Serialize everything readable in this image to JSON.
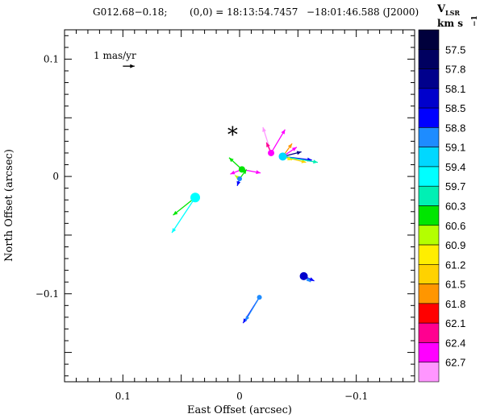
{
  "chart_data": {
    "type": "scatter",
    "header": {
      "source": "G012.68−0.18;",
      "origin": "(0,0) = 18:13:54.7457",
      "dec": "−18:01:46.588 (J2000)"
    },
    "xlabel": "East Offset (arcsec)",
    "ylabel": "North Offset (arcsec)",
    "xlim": [
      0.15,
      -0.15
    ],
    "ylim": [
      -0.175,
      0.125
    ],
    "x_ticks": [
      {
        "value": 0.1,
        "label": "0.1"
      },
      {
        "value": 0.0,
        "label": "0"
      },
      {
        "value": -0.1,
        "label": "−0.1"
      }
    ],
    "y_ticks": [
      {
        "value": 0.1,
        "label": "0.1"
      },
      {
        "value": 0.0,
        "label": "0"
      },
      {
        "value": -0.1,
        "label": "−0.1"
      }
    ],
    "reference_arrow": {
      "label": "1 mas/yr",
      "x": 0.1,
      "y": 0.094,
      "dx": -0.01,
      "dy": 0.0
    },
    "star_marker": {
      "symbol": "*",
      "x": 0.006,
      "y": 0.04
    },
    "colorbar": {
      "title_main": "V",
      "title_sub": "LSR",
      "unit": "km s",
      "unit_exp": "−1",
      "levels": [
        {
          "value": "57.5",
          "color": "#000060"
        },
        {
          "value": "57.8",
          "color": "#00008c"
        },
        {
          "value": "58.1",
          "color": "#0000cc"
        },
        {
          "value": "58.5",
          "color": "#0000ff"
        },
        {
          "value": "58.8",
          "color": "#1e8cff"
        },
        {
          "value": "59.1",
          "color": "#00d8ff"
        },
        {
          "value": "59.4",
          "color": "#00ffff"
        },
        {
          "value": "59.7",
          "color": "#00f0b4"
        },
        {
          "value": "60.3",
          "color": "#00e600"
        },
        {
          "value": "60.6",
          "color": "#b4ff00"
        },
        {
          "value": "60.9",
          "color": "#ffee00"
        },
        {
          "value": "61.2",
          "color": "#ffd200"
        },
        {
          "value": "61.5",
          "color": "#ff9600"
        },
        {
          "value": "61.8",
          "color": "#ff0000"
        },
        {
          "value": "62.1",
          "color": "#ff0090"
        },
        {
          "value": "62.4",
          "color": "#ff00ff"
        },
        {
          "value": "62.7",
          "color": "#ff96ff"
        }
      ],
      "top_color": "#00003c"
    },
    "spots": [
      {
        "x": 0.038,
        "y": -0.018,
        "size": 6,
        "color": "#00ffff"
      },
      {
        "x": -0.002,
        "y": 0.006,
        "size": 4,
        "color": "#00e600"
      },
      {
        "x": 0.0,
        "y": -0.002,
        "size": 3,
        "color": "#1e8cff"
      },
      {
        "x": -0.027,
        "y": 0.02,
        "size": 4,
        "color": "#ff00ff"
      },
      {
        "x": -0.037,
        "y": 0.017,
        "size": 5,
        "color": "#00d8ff"
      },
      {
        "x": -0.055,
        "y": -0.085,
        "size": 5,
        "color": "#0000cc"
      },
      {
        "x": -0.017,
        "y": -0.103,
        "size": 3,
        "color": "#1e8cff"
      }
    ],
    "vectors": [
      {
        "x": 0.038,
        "y": -0.018,
        "dx": 0.02,
        "dy": -0.03,
        "color": "#00ffff"
      },
      {
        "x": 0.038,
        "y": -0.018,
        "dx": 0.019,
        "dy": -0.015,
        "color": "#00e600"
      },
      {
        "x": -0.002,
        "y": 0.006,
        "dx": 0.011,
        "dy": 0.01,
        "color": "#00e600"
      },
      {
        "x": -0.002,
        "y": 0.006,
        "dx": 0.01,
        "dy": -0.004,
        "color": "#ff00ff"
      },
      {
        "x": -0.002,
        "y": 0.006,
        "dx": -0.016,
        "dy": -0.003,
        "color": "#ff00ff"
      },
      {
        "x": 0.0,
        "y": -0.002,
        "dx": 0.004,
        "dy": 0.003,
        "color": "#b4ff00"
      },
      {
        "x": 0.0,
        "y": -0.002,
        "dx": -0.006,
        "dy": 0.008,
        "color": "#00e600"
      },
      {
        "x": 0.0,
        "y": -0.002,
        "dx": 0.002,
        "dy": -0.006,
        "color": "#0000ff"
      },
      {
        "x": -0.027,
        "y": 0.02,
        "dx": 0.007,
        "dy": 0.022,
        "color": "#ff96ff"
      },
      {
        "x": -0.027,
        "y": 0.02,
        "dx": -0.012,
        "dy": 0.02,
        "color": "#ff00ff"
      },
      {
        "x": -0.027,
        "y": 0.02,
        "dx": 0.004,
        "dy": 0.009,
        "color": "#ff0090"
      },
      {
        "x": -0.037,
        "y": 0.017,
        "dx": -0.008,
        "dy": 0.011,
        "color": "#ff9600"
      },
      {
        "x": -0.037,
        "y": 0.017,
        "dx": -0.012,
        "dy": 0.008,
        "color": "#ff00ff"
      },
      {
        "x": -0.037,
        "y": 0.017,
        "dx": -0.016,
        "dy": 0.004,
        "color": "#00008c"
      },
      {
        "x": -0.037,
        "y": 0.017,
        "dx": -0.025,
        "dy": -0.003,
        "color": "#0000ff"
      },
      {
        "x": -0.037,
        "y": 0.017,
        "dx": -0.02,
        "dy": -0.005,
        "color": "#ffd200"
      },
      {
        "x": -0.037,
        "y": 0.017,
        "dx": -0.03,
        "dy": -0.005,
        "color": "#00f0b4"
      },
      {
        "x": -0.037,
        "y": 0.017,
        "dx": -0.008,
        "dy": -0.003,
        "color": "#ffee00"
      },
      {
        "x": -0.055,
        "y": -0.085,
        "dx": -0.009,
        "dy": -0.004,
        "color": "#0000ff"
      },
      {
        "x": -0.055,
        "y": -0.085,
        "dx": -0.006,
        "dy": -0.005,
        "color": "#1e8cff"
      },
      {
        "x": -0.017,
        "y": -0.103,
        "dx": 0.014,
        "dy": -0.022,
        "color": "#0000ff"
      },
      {
        "x": -0.017,
        "y": -0.103,
        "dx": 0.012,
        "dy": -0.02,
        "color": "#1e8cff"
      }
    ]
  }
}
